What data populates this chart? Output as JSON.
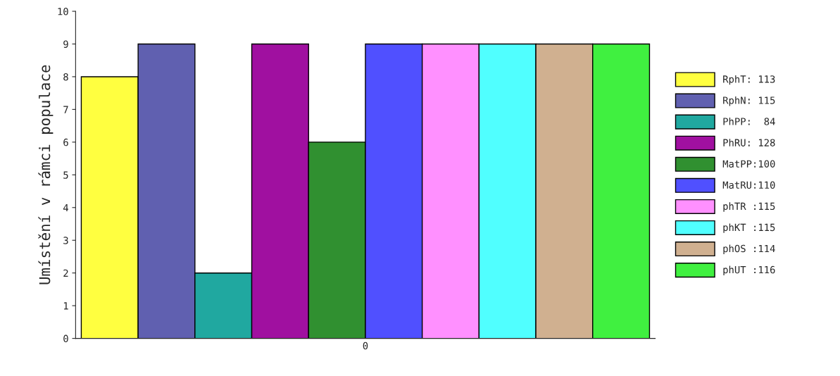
{
  "chart_data": {
    "type": "bar",
    "ylabel": "Umístění v rámci populace",
    "categories": [
      "0"
    ],
    "series": [
      {
        "name": "RphT: 113",
        "color": "#ffff40",
        "values": [
          8
        ]
      },
      {
        "name": "RphN: 115",
        "color": "#6060b0",
        "values": [
          9
        ]
      },
      {
        "name": "PhPP:  84",
        "color": "#20a8a0",
        "values": [
          2
        ]
      },
      {
        "name": "PhRU: 128",
        "color": "#a010a0",
        "values": [
          9
        ]
      },
      {
        "name": "MatPP:100",
        "color": "#309030",
        "values": [
          6
        ]
      },
      {
        "name": "MatRU:110",
        "color": "#5050ff",
        "values": [
          9
        ]
      },
      {
        "name": "phTR :115",
        "color": "#ff90ff",
        "values": [
          9
        ]
      },
      {
        "name": "phKT :115",
        "color": "#50ffff",
        "values": [
          9
        ]
      },
      {
        "name": "phOS :114",
        "color": "#d0b090",
        "values": [
          9
        ]
      },
      {
        "name": "phUT :116",
        "color": "#40f040",
        "values": [
          9
        ]
      }
    ],
    "ylim": [
      0,
      10
    ],
    "yticks": [
      0,
      1,
      2,
      3,
      4,
      5,
      6,
      7,
      8,
      9,
      10
    ],
    "grid": false,
    "legend": "right"
  }
}
